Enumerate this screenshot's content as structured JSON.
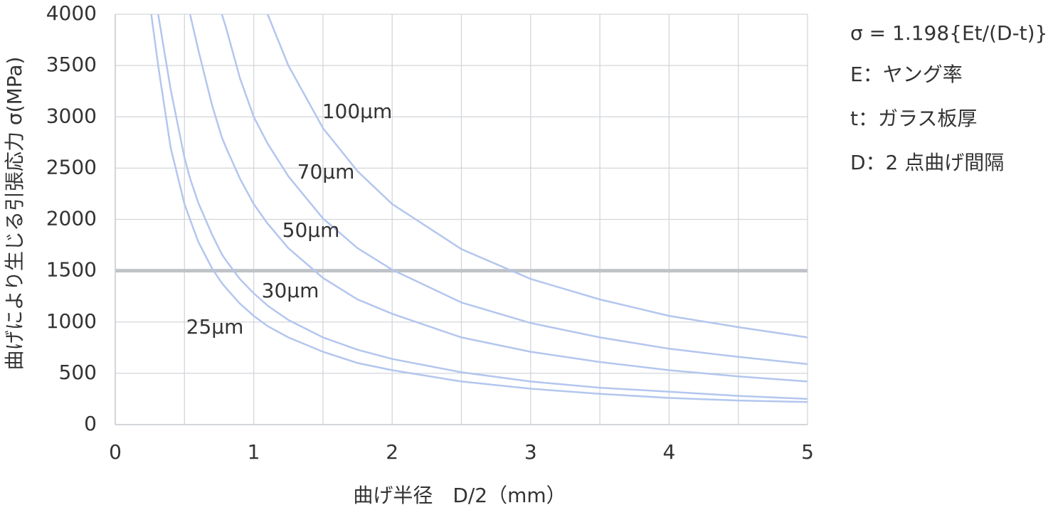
{
  "chart_data": {
    "type": "line",
    "y_label": "曲げにより生じる引張応力 σ(MPa)",
    "x_label": "曲げ半径　D/2（mm）",
    "annotations": [
      "σ = 1.198{Et/(D-t)}",
      "E：ヤング率",
      "t：ガラス板厚",
      "D：2 点曲げ間隔"
    ],
    "x": [
      0.26,
      0.31,
      0.4,
      0.5,
      0.54,
      0.6,
      0.7,
      0.77,
      0.8,
      0.9,
      1,
      1.1,
      1.25,
      1.5,
      1.75,
      2,
      2.5,
      3,
      3.5,
      4,
      4.5,
      5
    ],
    "series": [
      {
        "name": "25µm",
        "color": "#b3c6ee",
        "values": [
          4000,
          3500,
          2700,
          2150,
          2000,
          1780,
          1520,
          1380,
          1330,
          1180,
          1060,
          960,
          850,
          710,
          600,
          530,
          420,
          350,
          300,
          260,
          235,
          220
        ]
      },
      {
        "name": "30µm",
        "color": "#b3c6ee",
        "values": [
          null,
          4000,
          3270,
          2600,
          2400,
          2160,
          1850,
          1660,
          1600,
          1420,
          1280,
          1160,
          1020,
          850,
          730,
          640,
          510,
          420,
          360,
          320,
          280,
          250
        ]
      },
      {
        "name": "50µm",
        "color": "#b3c6ee",
        "values": [
          null,
          null,
          null,
          null,
          4000,
          3650,
          3110,
          2800,
          2700,
          2400,
          2150,
          1960,
          1720,
          1430,
          1220,
          1080,
          850,
          710,
          610,
          530,
          470,
          420
        ]
      },
      {
        "name": "70µm",
        "color": "#b3c6ee",
        "values": [
          null,
          null,
          null,
          null,
          null,
          null,
          null,
          4000,
          3870,
          3380,
          3000,
          2740,
          2420,
          2010,
          1720,
          1510,
          1190,
          990,
          850,
          740,
          660,
          590
        ]
      },
      {
        "name": "100µm",
        "color": "#b3c6ee",
        "values": [
          null,
          null,
          null,
          null,
          null,
          null,
          null,
          null,
          null,
          null,
          null,
          4000,
          3500,
          2890,
          2470,
          2150,
          1710,
          1420,
          1220,
          1060,
          950,
          850
        ]
      }
    ],
    "reference_line": {
      "value": 1500,
      "color": "#bfc3c7"
    },
    "xlim": [
      0,
      5
    ],
    "xticks": [
      0,
      1,
      2,
      3,
      4,
      5
    ],
    "xminorticks": [
      0.5,
      1.5,
      2.5,
      3.5,
      4.5
    ],
    "ylim": [
      0,
      4000
    ],
    "yticks": [
      0,
      500,
      1000,
      1500,
      2000,
      2500,
      3000,
      3500,
      4000
    ],
    "grid": true
  }
}
